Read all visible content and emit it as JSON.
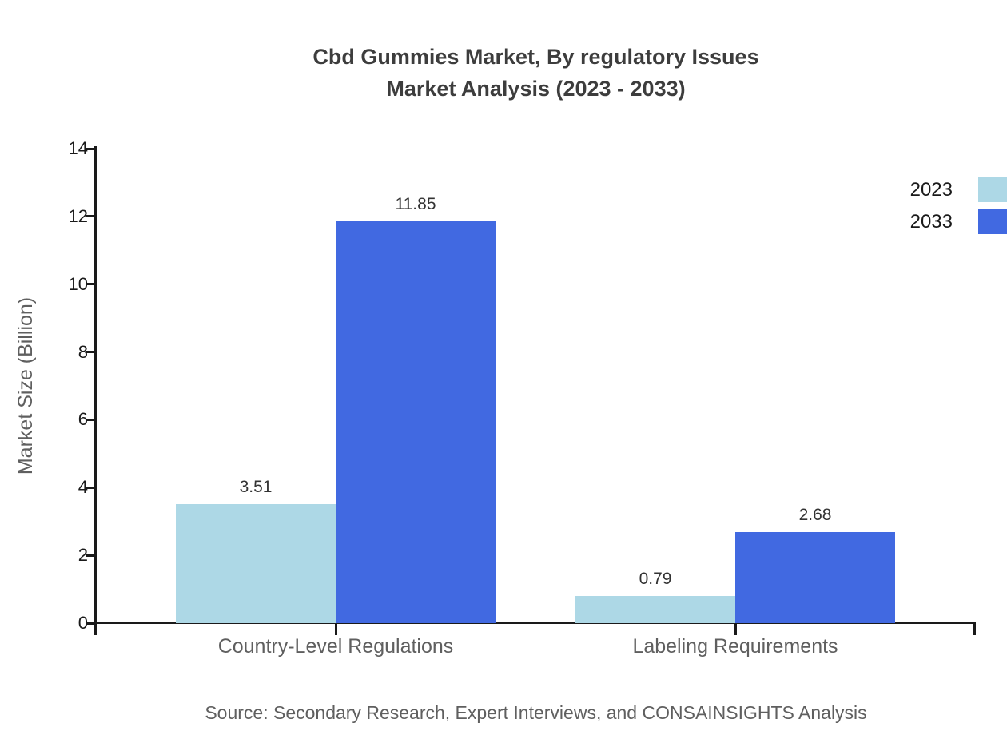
{
  "title": {
    "line1": "Cbd Gummies Market, By regulatory Issues",
    "line2": "Market Analysis (2023 - 2033)"
  },
  "source": "Source: Secondary Research, Expert Interviews, and CONSAINSIGHTS Analysis",
  "chart_data": {
    "type": "bar",
    "title": "Cbd Gummies Market, By regulatory Issues Market Analysis (2023 - 2033)",
    "categories": [
      "Country-Level Regulations",
      "Labeling Requirements"
    ],
    "series": [
      {
        "name": "2023",
        "color": "#ADD8E6",
        "values": [
          3.51,
          0.79
        ]
      },
      {
        "name": "2033",
        "color": "#4169E1",
        "values": [
          11.85,
          2.68
        ]
      }
    ],
    "value_labels": [
      [
        "3.51",
        "0.79"
      ],
      [
        "11.85",
        "2.68"
      ]
    ],
    "xlabel": "",
    "ylabel": "Market Size (Billion)",
    "ylim": [
      0,
      14
    ],
    "yticks": [
      0,
      2,
      4,
      6,
      8,
      10,
      12,
      14
    ],
    "grid": false,
    "legend_position": "top-right-clipped",
    "axis_color": "#1a1a1a",
    "text_color_muted": "#5f5f5f"
  }
}
